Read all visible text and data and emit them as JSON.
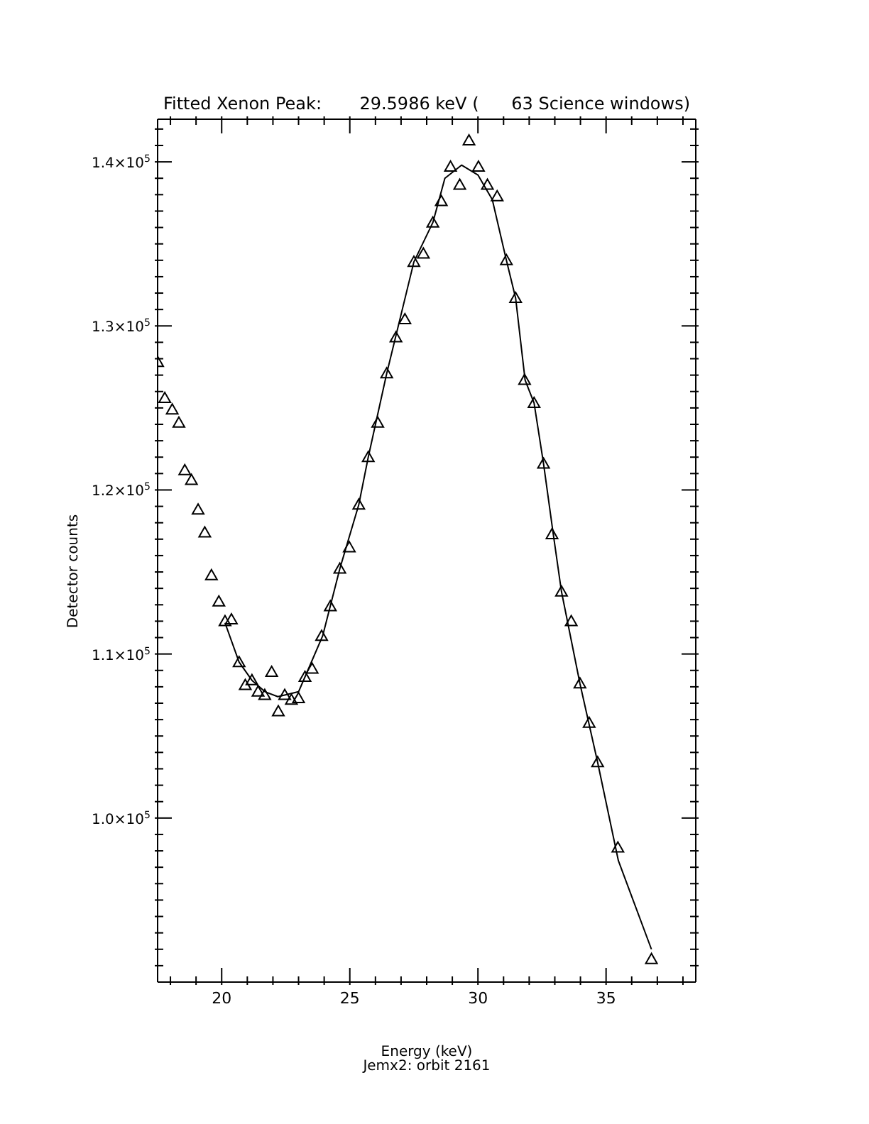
{
  "chart_data": {
    "type": "scatter",
    "title": "Fitted Xenon Peak:       29.5986 keV (      63 Science windows)",
    "xlabel": "Energy (keV)",
    "ylabel": "Detector counts",
    "annotations": [
      "Jemx2: orbit 2161"
    ],
    "xlim": [
      17.5,
      38.5
    ],
    "ylim": [
      90000,
      142600
    ],
    "xticks": [
      {
        "value": 18,
        "label": null
      },
      {
        "value": 19,
        "label": null
      },
      20,
      {
        "value": 21,
        "label": null
      },
      {
        "value": 22,
        "label": null
      },
      {
        "value": 23,
        "label": null
      },
      {
        "value": 24,
        "label": null
      },
      25,
      {
        "value": 26,
        "label": null
      },
      {
        "value": 27,
        "label": null
      },
      {
        "value": 28,
        "label": null
      },
      {
        "value": 29,
        "label": null
      },
      30,
      {
        "value": 31,
        "label": null
      },
      {
        "value": 32,
        "label": null
      },
      {
        "value": 33,
        "label": null
      },
      {
        "value": 34,
        "label": null
      },
      35,
      {
        "value": 36,
        "label": null
      },
      {
        "value": 37,
        "label": null
      },
      {
        "value": 38,
        "label": null
      }
    ],
    "yticks": [
      {
        "value": 91000,
        "label": null
      },
      {
        "value": 92000,
        "label": null
      },
      {
        "value": 93000,
        "label": null
      },
      {
        "value": 94000,
        "label": null
      },
      {
        "value": 95000,
        "label": null
      },
      {
        "value": 96000,
        "label": null
      },
      {
        "value": 97000,
        "label": null
      },
      {
        "value": 98000,
        "label": null
      },
      {
        "value": 99000,
        "label": null
      },
      {
        "value": 100000,
        "label": "1.0×10$^{5}$"
      },
      {
        "value": 101000,
        "label": null
      },
      {
        "value": 102000,
        "label": null
      },
      {
        "value": 103000,
        "label": null
      },
      {
        "value": 104000,
        "label": null
      },
      {
        "value": 105000,
        "label": null
      },
      {
        "value": 106000,
        "label": null
      },
      {
        "value": 107000,
        "label": null
      },
      {
        "value": 108000,
        "label": null
      },
      {
        "value": 109000,
        "label": null
      },
      {
        "value": 110000,
        "label": "1.1×10$^{5}$"
      },
      {
        "value": 111000,
        "label": null
      },
      {
        "value": 112000,
        "label": null
      },
      {
        "value": 113000,
        "label": null
      },
      {
        "value": 114000,
        "label": null
      },
      {
        "value": 115000,
        "label": null
      },
      {
        "value": 116000,
        "label": null
      },
      {
        "value": 117000,
        "label": null
      },
      {
        "value": 118000,
        "label": null
      },
      {
        "value": 119000,
        "label": null
      },
      {
        "value": 120000,
        "label": "1.2×10$^{5}$"
      },
      {
        "value": 121000,
        "label": null
      },
      {
        "value": 122000,
        "label": null
      },
      {
        "value": 123000,
        "label": null
      },
      {
        "value": 124000,
        "label": null
      },
      {
        "value": 125000,
        "label": null
      },
      {
        "value": 126000,
        "label": null
      },
      {
        "value": 127000,
        "label": null
      },
      {
        "value": 128000,
        "label": null
      },
      {
        "value": 129000,
        "label": null
      },
      {
        "value": 130000,
        "label": "1.3×10$^{5}$"
      },
      {
        "value": 131000,
        "label": null
      },
      {
        "value": 132000,
        "label": null
      },
      {
        "value": 133000,
        "label": null
      },
      {
        "value": 134000,
        "label": null
      },
      {
        "value": 135000,
        "label": null
      },
      {
        "value": 136000,
        "label": null
      },
      {
        "value": 137000,
        "label": null
      },
      {
        "value": 138000,
        "label": null
      },
      {
        "value": 139000,
        "label": null
      },
      {
        "value": 140000,
        "label": "1.4×10$^{5}$"
      },
      {
        "value": 141000,
        "label": null
      },
      {
        "value": 142000,
        "label": null
      }
    ],
    "marker": "triangle",
    "series": [
      {
        "color": "#000000",
        "x": [
          17.5,
          17.78,
          18.07,
          18.33,
          18.56,
          18.82,
          19.08,
          19.34,
          19.6,
          19.89,
          20.13,
          20.38,
          20.68,
          20.92,
          21.18,
          21.42,
          21.68,
          21.95,
          22.21,
          22.46,
          22.72,
          23.0,
          23.25,
          23.53,
          23.9,
          24.24,
          24.61,
          24.98,
          25.35,
          25.72,
          26.09,
          26.44,
          26.8,
          27.15,
          27.5,
          27.87,
          28.24,
          28.57,
          28.93,
          29.29,
          29.65,
          30.02,
          30.37,
          30.75,
          31.11,
          31.47,
          31.82,
          32.19,
          32.56,
          32.89,
          33.26,
          33.64,
          33.98,
          34.34,
          34.67,
          35.46,
          36.77
        ],
        "values": [
          127800,
          125600,
          124900,
          124100,
          121200,
          120600,
          118800,
          117400,
          114800,
          113200,
          112000,
          112100,
          109500,
          108100,
          108400,
          107700,
          107500,
          108900,
          106500,
          107500,
          107200,
          107300,
          108600,
          109100,
          111100,
          112900,
          115200,
          116500,
          119100,
          122000,
          124100,
          127100,
          129300,
          130400,
          133900,
          134400,
          136300,
          137600,
          139700,
          138600,
          141300,
          139700,
          138600,
          137900,
          134000,
          131700,
          126700,
          125300,
          121600,
          117300,
          113800,
          112000,
          108200,
          105800,
          103400,
          98200,
          91400
        ]
      },
      {
        "type": "line",
        "color": "#000000",
        "marker": "none",
        "line_style": "solid",
        "x": [
          20.13,
          20.68,
          21.18,
          21.69,
          22.19,
          22.46,
          23.0,
          23.25,
          23.94,
          24.61,
          25.35,
          25.72,
          26.44,
          27.5,
          28.24,
          28.71,
          29.36,
          30.0,
          30.56,
          31.11,
          31.47,
          31.84,
          32.19,
          32.56,
          32.94,
          33.26,
          33.98,
          34.67,
          35.48,
          36.77
        ],
        "values": [
          111900,
          109500,
          108400,
          107700,
          107400,
          107500,
          107700,
          108600,
          111100,
          115200,
          119100,
          122000,
          127100,
          133900,
          136300,
          139000,
          139800,
          139200,
          137700,
          134000,
          131700,
          126700,
          125300,
          121600,
          117300,
          113800,
          108200,
          103400,
          97400,
          92000
        ]
      }
    ]
  }
}
